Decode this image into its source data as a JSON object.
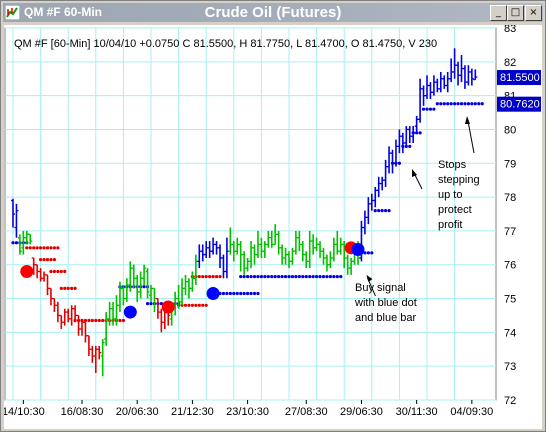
{
  "window": {
    "symbol_title": "QM #F 60-Min",
    "main_title": "Crude Oil (Futures)",
    "buttons": {
      "minimize": "_",
      "maximize": "□",
      "close": "×"
    }
  },
  "colors": {
    "up": "#00c000",
    "down": "#e00000",
    "blue": "#0000e0",
    "grid": "#a8f0f0",
    "label_bg": "#0000c8"
  },
  "chart_data": {
    "type": "bar",
    "title": "Crude Oil (Futures)",
    "info_line": "QM #F [60-Min] 10/04/10 +0.0750 C 81.5500, H 81.7750, L 81.4700, O 81.4750, V 230",
    "ylim": [
      72,
      83
    ],
    "y_ticks": [
      "72",
      "73",
      "74",
      "75",
      "76",
      "77",
      "78",
      "79",
      "80",
      "81",
      "82",
      "83"
    ],
    "x_ticks": [
      {
        "label": "14/10:30",
        "index": 3
      },
      {
        "label": "16/08:30",
        "index": 20
      },
      {
        "label": "20/06:30",
        "index": 36
      },
      {
        "label": "21/12:30",
        "index": 52
      },
      {
        "label": "23/10:30",
        "index": 68
      },
      {
        "label": "27/08:30",
        "index": 85
      },
      {
        "label": "29/06:30",
        "index": 101
      },
      {
        "label": "30/11:30",
        "index": 117
      },
      {
        "label": "04/09:30",
        "index": 133
      }
    ],
    "price_labels": [
      {
        "text": "81.5500",
        "value": 81.55
      },
      {
        "text": "80.7620",
        "value": 80.762
      }
    ],
    "annotations": [
      {
        "lines": [
          "Buy signal",
          "with blue dot",
          "and blue bar"
        ],
        "anchor_value": 75.55,
        "anchor_index": 101
      },
      {
        "lines": [
          "Stops",
          "stepping",
          "up to",
          "protect",
          "profit"
        ],
        "anchor_value": 78.9,
        "anchor_index": 128
      }
    ],
    "bars": [
      [
        77.9,
        77.5,
        77.95,
        77.1
      ],
      [
        77.1,
        77.6,
        77.8,
        76.8
      ],
      [
        76.8,
        76.4,
        76.9,
        76.3
      ],
      [
        76.5,
        76.8,
        77.0,
        76.3
      ],
      [
        76.8,
        76.9,
        77.0,
        76.6
      ],
      [
        76.9,
        76.7,
        76.9,
        76.6
      ],
      [
        76.2,
        76.0,
        76.2,
        75.7
      ],
      [
        76.0,
        75.8,
        76.0,
        75.6
      ],
      [
        75.8,
        75.6,
        75.9,
        75.5
      ],
      [
        75.6,
        75.7,
        75.8,
        75.5
      ],
      [
        75.7,
        75.3,
        75.7,
        75.1
      ],
      [
        75.3,
        75.0,
        75.3,
        74.8
      ],
      [
        75.0,
        74.8,
        75.0,
        74.6
      ],
      [
        74.8,
        74.5,
        74.9,
        74.3
      ],
      [
        74.5,
        74.3,
        74.5,
        74.1
      ],
      [
        74.3,
        74.6,
        74.7,
        74.2
      ],
      [
        74.6,
        74.4,
        74.7,
        74.3
      ],
      [
        74.4,
        74.7,
        74.8,
        74.2
      ],
      [
        74.7,
        74.5,
        74.8,
        74.3
      ],
      [
        74.5,
        74.1,
        74.5,
        73.9
      ],
      [
        74.1,
        74.3,
        74.4,
        73.9
      ],
      [
        74.3,
        73.9,
        74.3,
        73.7
      ],
      [
        73.9,
        73.5,
        73.9,
        73.3
      ],
      [
        73.5,
        73.3,
        73.6,
        73.1
      ],
      [
        73.3,
        73.5,
        73.6,
        72.8
      ],
      [
        73.5,
        73.4,
        73.6,
        73.2
      ],
      [
        73.3,
        73.7,
        73.8,
        72.7
      ],
      [
        73.8,
        74.4,
        74.6,
        73.6
      ],
      [
        74.4,
        74.7,
        74.9,
        74.2
      ],
      [
        74.7,
        74.4,
        74.9,
        74.2
      ],
      [
        74.4,
        74.8,
        75.1,
        74.2
      ],
      [
        74.8,
        75.3,
        75.5,
        74.6
      ],
      [
        75.3,
        75.0,
        75.4,
        74.8
      ],
      [
        75.0,
        75.4,
        75.6,
        74.9
      ],
      [
        75.4,
        75.9,
        76.1,
        75.2
      ],
      [
        75.9,
        75.6,
        76.0,
        75.3
      ],
      [
        75.6,
        75.2,
        75.7,
        74.9
      ],
      [
        75.2,
        75.6,
        75.8,
        75.0
      ],
      [
        75.6,
        75.9,
        76.0,
        75.4
      ],
      [
        75.8,
        75.2,
        75.9,
        75.0
      ],
      [
        75.1,
        75.3,
        75.4,
        74.9
      ],
      [
        75.3,
        75.0,
        75.3,
        74.6
      ],
      [
        75.0,
        74.6,
        75.0,
        74.4
      ],
      [
        74.6,
        74.3,
        74.7,
        74.0
      ],
      [
        74.3,
        74.7,
        74.9,
        74.1
      ],
      [
        74.7,
        74.5,
        74.8,
        74.2
      ],
      [
        74.4,
        74.8,
        74.9,
        74.2
      ],
      [
        74.8,
        75.0,
        75.2,
        74.5
      ],
      [
        75.0,
        74.9,
        75.4,
        74.7
      ],
      [
        74.9,
        75.3,
        75.6,
        74.8
      ],
      [
        75.3,
        75.5,
        75.7,
        75.1
      ],
      [
        75.5,
        75.3,
        75.6,
        75.0
      ],
      [
        75.3,
        75.6,
        75.8,
        75.2
      ],
      [
        75.6,
        76.1,
        76.3,
        75.4
      ],
      [
        76.1,
        76.4,
        76.6,
        75.9
      ],
      [
        76.4,
        76.3,
        76.6,
        76.1
      ],
      [
        76.3,
        76.5,
        76.7,
        76.2
      ],
      [
        76.5,
        76.4,
        76.7,
        76.2
      ],
      [
        76.4,
        76.6,
        76.8,
        76.3
      ],
      [
        76.6,
        76.5,
        76.7,
        76.3
      ],
      [
        76.5,
        76.2,
        76.6,
        75.9
      ],
      [
        76.2,
        75.8,
        76.3,
        75.6
      ],
      [
        75.8,
        76.4,
        76.8,
        75.6
      ],
      [
        76.4,
        76.6,
        77.1,
        76.3
      ],
      [
        76.6,
        76.4,
        76.7,
        76.1
      ],
      [
        76.4,
        76.6,
        76.8,
        76.3
      ],
      [
        76.6,
        76.3,
        76.7,
        75.8
      ],
      [
        76.3,
        75.9,
        76.4,
        75.7
      ],
      [
        75.9,
        76.1,
        76.2,
        75.8
      ],
      [
        76.1,
        76.5,
        76.7,
        75.9
      ],
      [
        76.5,
        76.3,
        76.6,
        76.0
      ],
      [
        76.3,
        76.6,
        77.0,
        76.2
      ],
      [
        76.6,
        76.4,
        76.8,
        76.2
      ],
      [
        76.4,
        76.6,
        76.7,
        76.2
      ],
      [
        76.6,
        76.8,
        77.0,
        76.5
      ],
      [
        76.8,
        76.6,
        77.0,
        76.5
      ],
      [
        76.6,
        76.9,
        77.2,
        76.6
      ],
      [
        76.9,
        76.5,
        77.0,
        76.3
      ],
      [
        76.5,
        76.2,
        76.6,
        76.0
      ],
      [
        76.2,
        76.3,
        76.5,
        76.0
      ],
      [
        76.3,
        76.1,
        76.4,
        75.9
      ],
      [
        76.1,
        76.4,
        76.5,
        76.0
      ],
      [
        76.4,
        76.8,
        77.0,
        76.3
      ],
      [
        76.8,
        76.6,
        77.0,
        76.4
      ],
      [
        76.6,
        76.3,
        76.7,
        76.1
      ],
      [
        76.3,
        76.1,
        76.4,
        75.9
      ],
      [
        76.1,
        76.7,
        77.0,
        75.9
      ],
      [
        76.7,
        76.5,
        76.9,
        76.3
      ],
      [
        76.5,
        76.6,
        76.8,
        76.4
      ],
      [
        76.6,
        76.4,
        76.7,
        76.2
      ],
      [
        76.4,
        76.2,
        76.5,
        76.0
      ],
      [
        76.2,
        76.0,
        76.3,
        75.8
      ],
      [
        76.0,
        76.2,
        76.4,
        75.9
      ],
      [
        76.2,
        76.6,
        76.8,
        76.1
      ],
      [
        76.6,
        76.4,
        77.0,
        76.3
      ],
      [
        76.4,
        76.6,
        76.8,
        76.3
      ],
      [
        76.6,
        76.2,
        76.7,
        75.9
      ],
      [
        76.2,
        75.9,
        76.3,
        75.7
      ],
      [
        75.9,
        76.1,
        76.2,
        75.7
      ],
      [
        76.1,
        76.3,
        76.5,
        76.0
      ],
      [
        76.3,
        76.2,
        76.7,
        76.0
      ],
      [
        76.2,
        77.1,
        77.3,
        76.1
      ],
      [
        77.1,
        77.4,
        77.6,
        76.9
      ],
      [
        77.4,
        77.8,
        78.0,
        77.2
      ],
      [
        77.8,
        77.9,
        78.1,
        77.6
      ],
      [
        77.9,
        78.2,
        78.3,
        77.7
      ],
      [
        78.2,
        78.4,
        78.6,
        78.0
      ],
      [
        78.4,
        78.5,
        78.6,
        78.2
      ],
      [
        78.5,
        78.9,
        79.1,
        78.3
      ],
      [
        78.9,
        79.3,
        79.5,
        78.7
      ],
      [
        79.3,
        79.0,
        79.4,
        78.7
      ],
      [
        79.0,
        79.5,
        79.7,
        78.9
      ],
      [
        79.5,
        79.8,
        80.0,
        79.3
      ],
      [
        79.8,
        79.6,
        79.9,
        79.3
      ],
      [
        79.6,
        80.0,
        80.1,
        79.5
      ],
      [
        80.0,
        79.8,
        80.1,
        79.6
      ],
      [
        79.8,
        79.9,
        80.1,
        79.6
      ],
      [
        80.1,
        80.3,
        80.4,
        79.9
      ],
      [
        80.3,
        81.2,
        81.5,
        80.2
      ],
      [
        81.2,
        81.0,
        81.3,
        80.7
      ],
      [
        81.0,
        81.3,
        81.6,
        80.9
      ],
      [
        81.3,
        81.1,
        81.4,
        80.9
      ],
      [
        81.1,
        81.4,
        81.6,
        81.0
      ],
      [
        81.4,
        81.2,
        81.5,
        81.1
      ],
      [
        81.2,
        81.5,
        81.7,
        81.1
      ],
      [
        81.5,
        81.3,
        81.6,
        81.2
      ],
      [
        81.3,
        81.5,
        81.7,
        81.1
      ],
      [
        81.5,
        81.7,
        82.1,
        81.4
      ],
      [
        81.7,
        81.9,
        82.4,
        81.5
      ],
      [
        81.9,
        81.6,
        82.0,
        81.3
      ],
      [
        81.6,
        81.8,
        82.2,
        81.4
      ],
      [
        81.8,
        81.4,
        81.9,
        81.2
      ],
      [
        81.4,
        81.7,
        81.9,
        81.3
      ],
      [
        81.7,
        81.5,
        81.8,
        81.3
      ],
      [
        81.475,
        81.55,
        81.775,
        81.47
      ]
    ],
    "bar_colors": [
      "b",
      "b",
      "g",
      "g",
      "g",
      "g",
      "r",
      "r",
      "r",
      "r",
      "r",
      "r",
      "r",
      "r",
      "r",
      "r",
      "r",
      "r",
      "r",
      "r",
      "r",
      "r",
      "r",
      "r",
      "r",
      "r",
      "g",
      "g",
      "g",
      "g",
      "g",
      "g",
      "g",
      "g",
      "g",
      "g",
      "g",
      "g",
      "g",
      "g",
      "g",
      "g",
      "r",
      "r",
      "r",
      "r",
      "g",
      "g",
      "g",
      "g",
      "g",
      "g",
      "g",
      "g",
      "b",
      "b",
      "b",
      "b",
      "b",
      "b",
      "b",
      "b",
      "b",
      "g",
      "g",
      "g",
      "g",
      "g",
      "g",
      "g",
      "g",
      "g",
      "g",
      "g",
      "g",
      "g",
      "g",
      "g",
      "g",
      "g",
      "g",
      "g",
      "g",
      "g",
      "g",
      "g",
      "g",
      "g",
      "g",
      "g",
      "g",
      "g",
      "g",
      "g",
      "g",
      "g",
      "g",
      "g",
      "g",
      "g",
      "g",
      "b",
      "b",
      "b",
      "b",
      "b",
      "b",
      "b",
      "b",
      "b",
      "b",
      "b",
      "b",
      "b",
      "b",
      "b",
      "b",
      "b",
      "b",
      "b",
      "b",
      "b",
      "b",
      "b",
      "b",
      "b",
      "b",
      "b",
      "b",
      "b",
      "b",
      "b",
      "b",
      "b",
      "b",
      "b",
      "b",
      "b"
    ],
    "stops": [
      {
        "color": "blue",
        "from": 0,
        "to": 4,
        "value": 76.65
      },
      {
        "color": "red",
        "from": 4,
        "to": 13,
        "value": 76.5
      },
      {
        "color": "red",
        "from": 8,
        "to": 12,
        "value": 76.15
      },
      {
        "color": "red",
        "from": 11,
        "to": 15,
        "value": 75.8
      },
      {
        "color": "red",
        "from": 14,
        "to": 18,
        "value": 75.3
      },
      {
        "color": "red",
        "from": 18,
        "to": 32,
        "value": 74.35
      },
      {
        "color": "blue",
        "from": 31,
        "to": 39,
        "value": 75.35
      },
      {
        "color": "blue",
        "from": 39,
        "to": 48,
        "value": 74.85
      },
      {
        "color": "red",
        "from": 48,
        "to": 56,
        "value": 74.8
      },
      {
        "color": "red",
        "from": 52,
        "to": 60,
        "value": 75.65
      },
      {
        "color": "blue",
        "from": 57,
        "to": 71,
        "value": 75.15
      },
      {
        "color": "blue",
        "from": 66,
        "to": 95,
        "value": 75.65
      },
      {
        "color": "blue",
        "from": 101,
        "to": 104,
        "value": 76.35
      },
      {
        "color": "blue",
        "from": 105,
        "to": 109,
        "value": 77.6
      },
      {
        "color": "blue",
        "from": 110,
        "to": 112,
        "value": 79.0
      },
      {
        "color": "blue",
        "from": 113,
        "to": 115,
        "value": 79.5
      },
      {
        "color": "blue",
        "from": 116,
        "to": 118,
        "value": 79.9
      },
      {
        "color": "blue",
        "from": 119,
        "to": 122,
        "value": 80.6
      },
      {
        "color": "blue",
        "from": 123,
        "to": 136,
        "value": 80.76
      }
    ],
    "signal_dots": [
      {
        "color": "red",
        "index": 4,
        "value": 75.8
      },
      {
        "color": "red",
        "index": 45,
        "value": 74.75
      },
      {
        "color": "red",
        "index": 98,
        "value": 76.5
      },
      {
        "color": "blue",
        "index": 34,
        "value": 74.6
      },
      {
        "color": "blue",
        "index": 58,
        "value": 75.15
      },
      {
        "color": "blue",
        "index": 100,
        "value": 76.45
      }
    ]
  }
}
